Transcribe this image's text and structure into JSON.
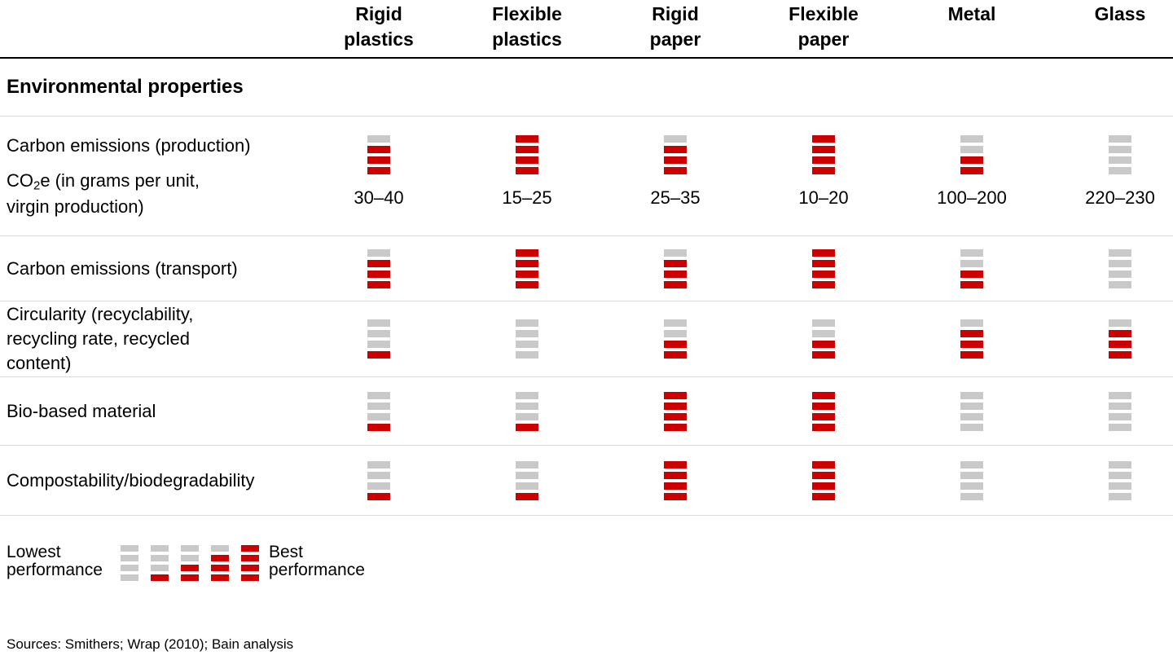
{
  "chart_data": {
    "type": "table",
    "title": "Environmental properties",
    "categories": [
      "Rigid plastics",
      "Flexible plastics",
      "Rigid paper",
      "Flexible paper",
      "Metal",
      "Glass"
    ],
    "scale": {
      "min": 0,
      "max": 4,
      "low_label": "Lowest performance",
      "high_label": "Best performance"
    },
    "rows": [
      {
        "label": "Carbon emissions (production)",
        "sublabel": {
          "co": "CO",
          "sub": "2",
          "rest": "e (in grams per unit,",
          "line2": "virgin production)"
        },
        "ratings": [
          3,
          4,
          3,
          4,
          2,
          0
        ],
        "values": [
          "30–40",
          "15–25",
          "25–35",
          "10–20",
          "100–200",
          "220–230"
        ]
      },
      {
        "label": "Carbon emissions (transport)",
        "ratings": [
          3,
          4,
          3,
          4,
          2,
          0
        ]
      },
      {
        "label": "Circularity (recyclability,",
        "label2": "recycling rate, recycled content)",
        "ratings": [
          1,
          0,
          2,
          2,
          3,
          3
        ]
      },
      {
        "label": "Bio-based material",
        "ratings": [
          1,
          1,
          4,
          4,
          0,
          0
        ]
      },
      {
        "label": "Compostability/biodegradability",
        "ratings": [
          1,
          1,
          4,
          4,
          0,
          0
        ]
      }
    ]
  },
  "legend": {
    "ratings": [
      0,
      1,
      2,
      3,
      4
    ]
  },
  "sources": "Sources: Smithers; Wrap (2010); Bain analysis",
  "colors": {
    "filled": "#CC0000",
    "empty": "#C9C9C9"
  }
}
